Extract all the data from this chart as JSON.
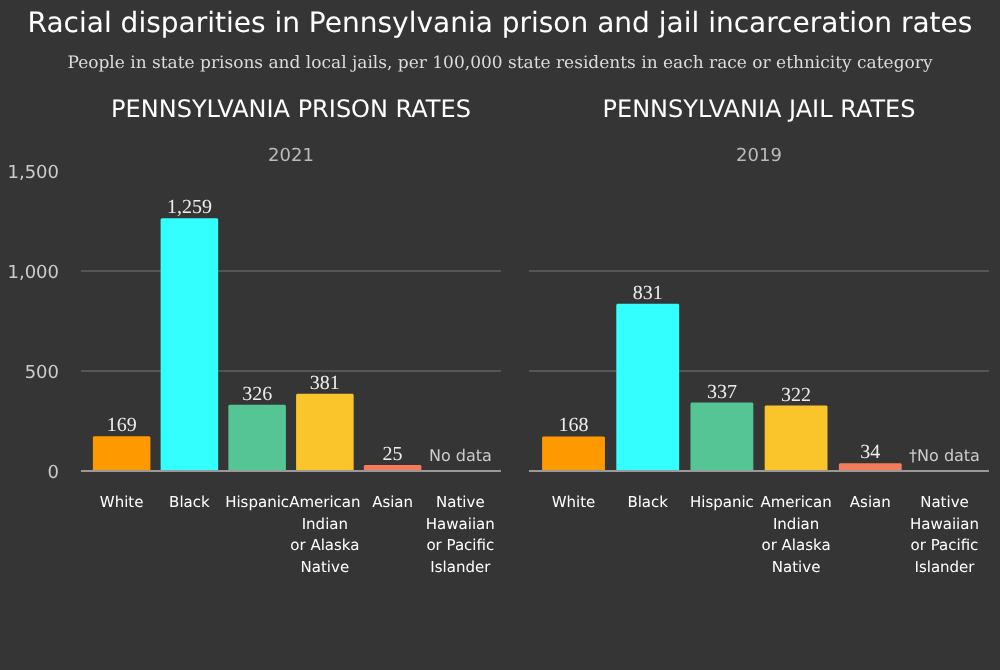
{
  "chart_data": [
    {
      "type": "bar",
      "title": "PENNSYLVANIA PRISON RATES",
      "subtitle": "2021",
      "annotations": [
        "Racial disparities in Pennsylvania prison and jail incarceration rates",
        "People in state prisons and local jails, per 100,000 state residents in each race or ethnicity category",
        "No data"
      ],
      "categories": [
        "White",
        "Black",
        "Hispanic",
        "American\nIndian\nor Alaska\nNative",
        "Asian",
        "Native\nHawaiian\nor Pacific\nIslander"
      ],
      "values": [
        169,
        1259,
        326,
        381,
        25,
        null
      ],
      "colors": [
        "#ff9900",
        "#33ffff",
        "#55c595",
        "#f9c52a",
        "#f47c5c",
        "#888888"
      ],
      "ylim": [
        0,
        1500
      ],
      "yticks": [
        {
          "value": 0,
          "label": "0"
        },
        {
          "value": 500,
          "label": "500"
        },
        {
          "value": 1000,
          "label": "1,000"
        },
        {
          "value": 1500,
          "label": "1,500"
        }
      ],
      "value_labels": [
        "169",
        "1,259",
        "326",
        "381",
        "25",
        null
      ],
      "grid": "y"
    },
    {
      "type": "bar",
      "title": "PENNSYLVANIA JAIL RATES",
      "subtitle": "2019",
      "annotations": [
        "†No data"
      ],
      "categories": [
        "White",
        "Black",
        "Hispanic",
        "American\nIndian\nor Alaska\nNative",
        "Asian",
        "Native\nHawaiian\nor Pacific\nIslander"
      ],
      "values": [
        168,
        831,
        337,
        322,
        34,
        null
      ],
      "colors": [
        "#ff9900",
        "#33ffff",
        "#55c595",
        "#f9c52a",
        "#f47c5c",
        "#888888"
      ],
      "ylim": [
        0,
        1500
      ],
      "data_labels": true,
      "grid": "y",
      "tick_labels": "x",
      "yticks": [
        0,
        500,
        1000,
        1500
      ]
    }
  ]
}
